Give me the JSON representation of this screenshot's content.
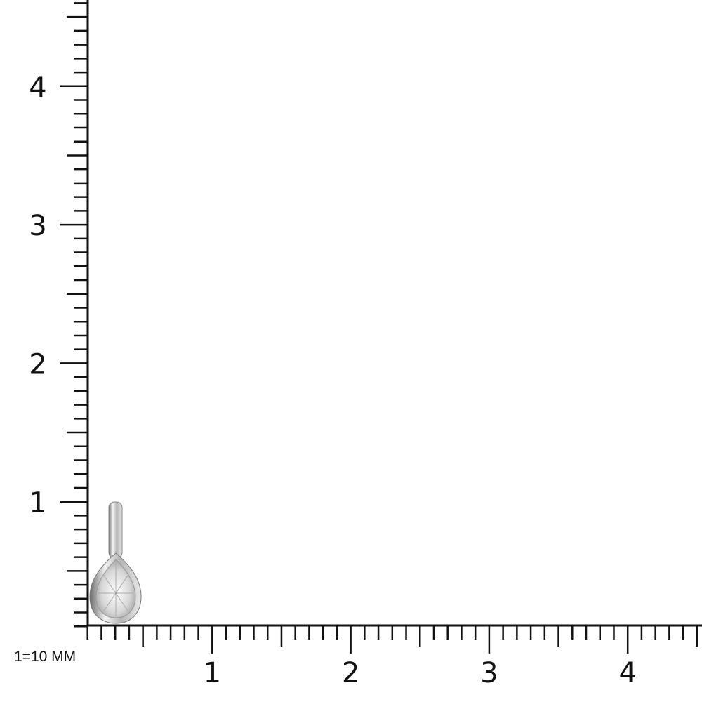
{
  "scale_note": "1=10 MM",
  "ruler": {
    "x_labels": [
      "1",
      "2",
      "3",
      "4"
    ],
    "y_labels": [
      "1",
      "2",
      "3",
      "4"
    ],
    "x_range": [
      0,
      4.5
    ],
    "y_range": [
      0,
      4.6
    ],
    "minor_ticks_per_unit": 10,
    "color": "#111111"
  },
  "product": {
    "type": "pear-shaped diamond pendant",
    "metal_color": "#c8c8c8",
    "height_units": 0.99,
    "width_units": 0.4
  }
}
